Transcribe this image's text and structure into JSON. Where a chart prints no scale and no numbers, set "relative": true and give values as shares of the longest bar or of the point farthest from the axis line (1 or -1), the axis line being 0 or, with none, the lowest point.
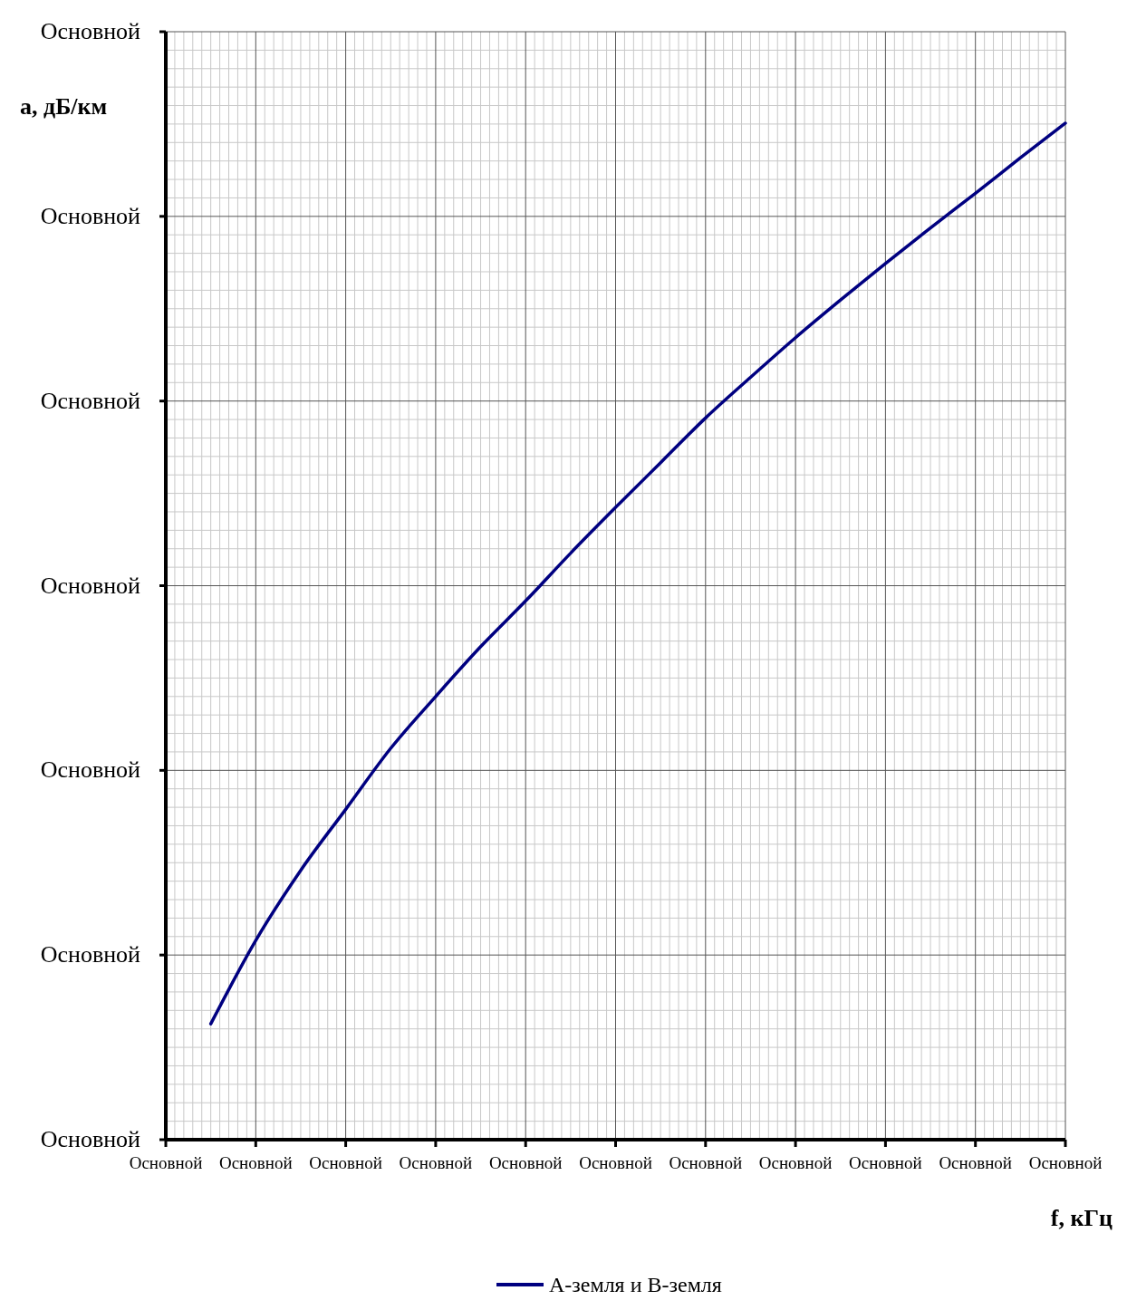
{
  "chart_data": {
    "type": "line",
    "xlabel": "f, кГц",
    "ylabel": "а, дБ/км",
    "relative": true,
    "categories": [
      "Основной",
      null,
      "Основной",
      null,
      "Основной",
      null,
      "Основной",
      null,
      "Основной",
      null,
      "Основной",
      null,
      "Основной",
      null,
      "Основной",
      null,
      "Основной",
      null,
      "Основной",
      null,
      "Основной"
    ],
    "annotations": [
      "Основной",
      "Основной",
      "Основной",
      "Основной",
      "Основной",
      "Основной",
      "Основной"
    ],
    "grid": true,
    "legend": "bottom",
    "marker": "none",
    "line_style": "solid",
    "series": [
      {
        "name": "А-земля и В-земля",
        "color": "#000080",
        "values": [
          null,
          0.114,
          0.196,
          0.265,
          0.325,
          0.385,
          0.436,
          0.485,
          0.53,
          0.577,
          0.622,
          0.666,
          0.71,
          0.75,
          0.789,
          0.826,
          0.862,
          0.897,
          0.931,
          0.966,
          1
        ]
      }
    ]
  }
}
